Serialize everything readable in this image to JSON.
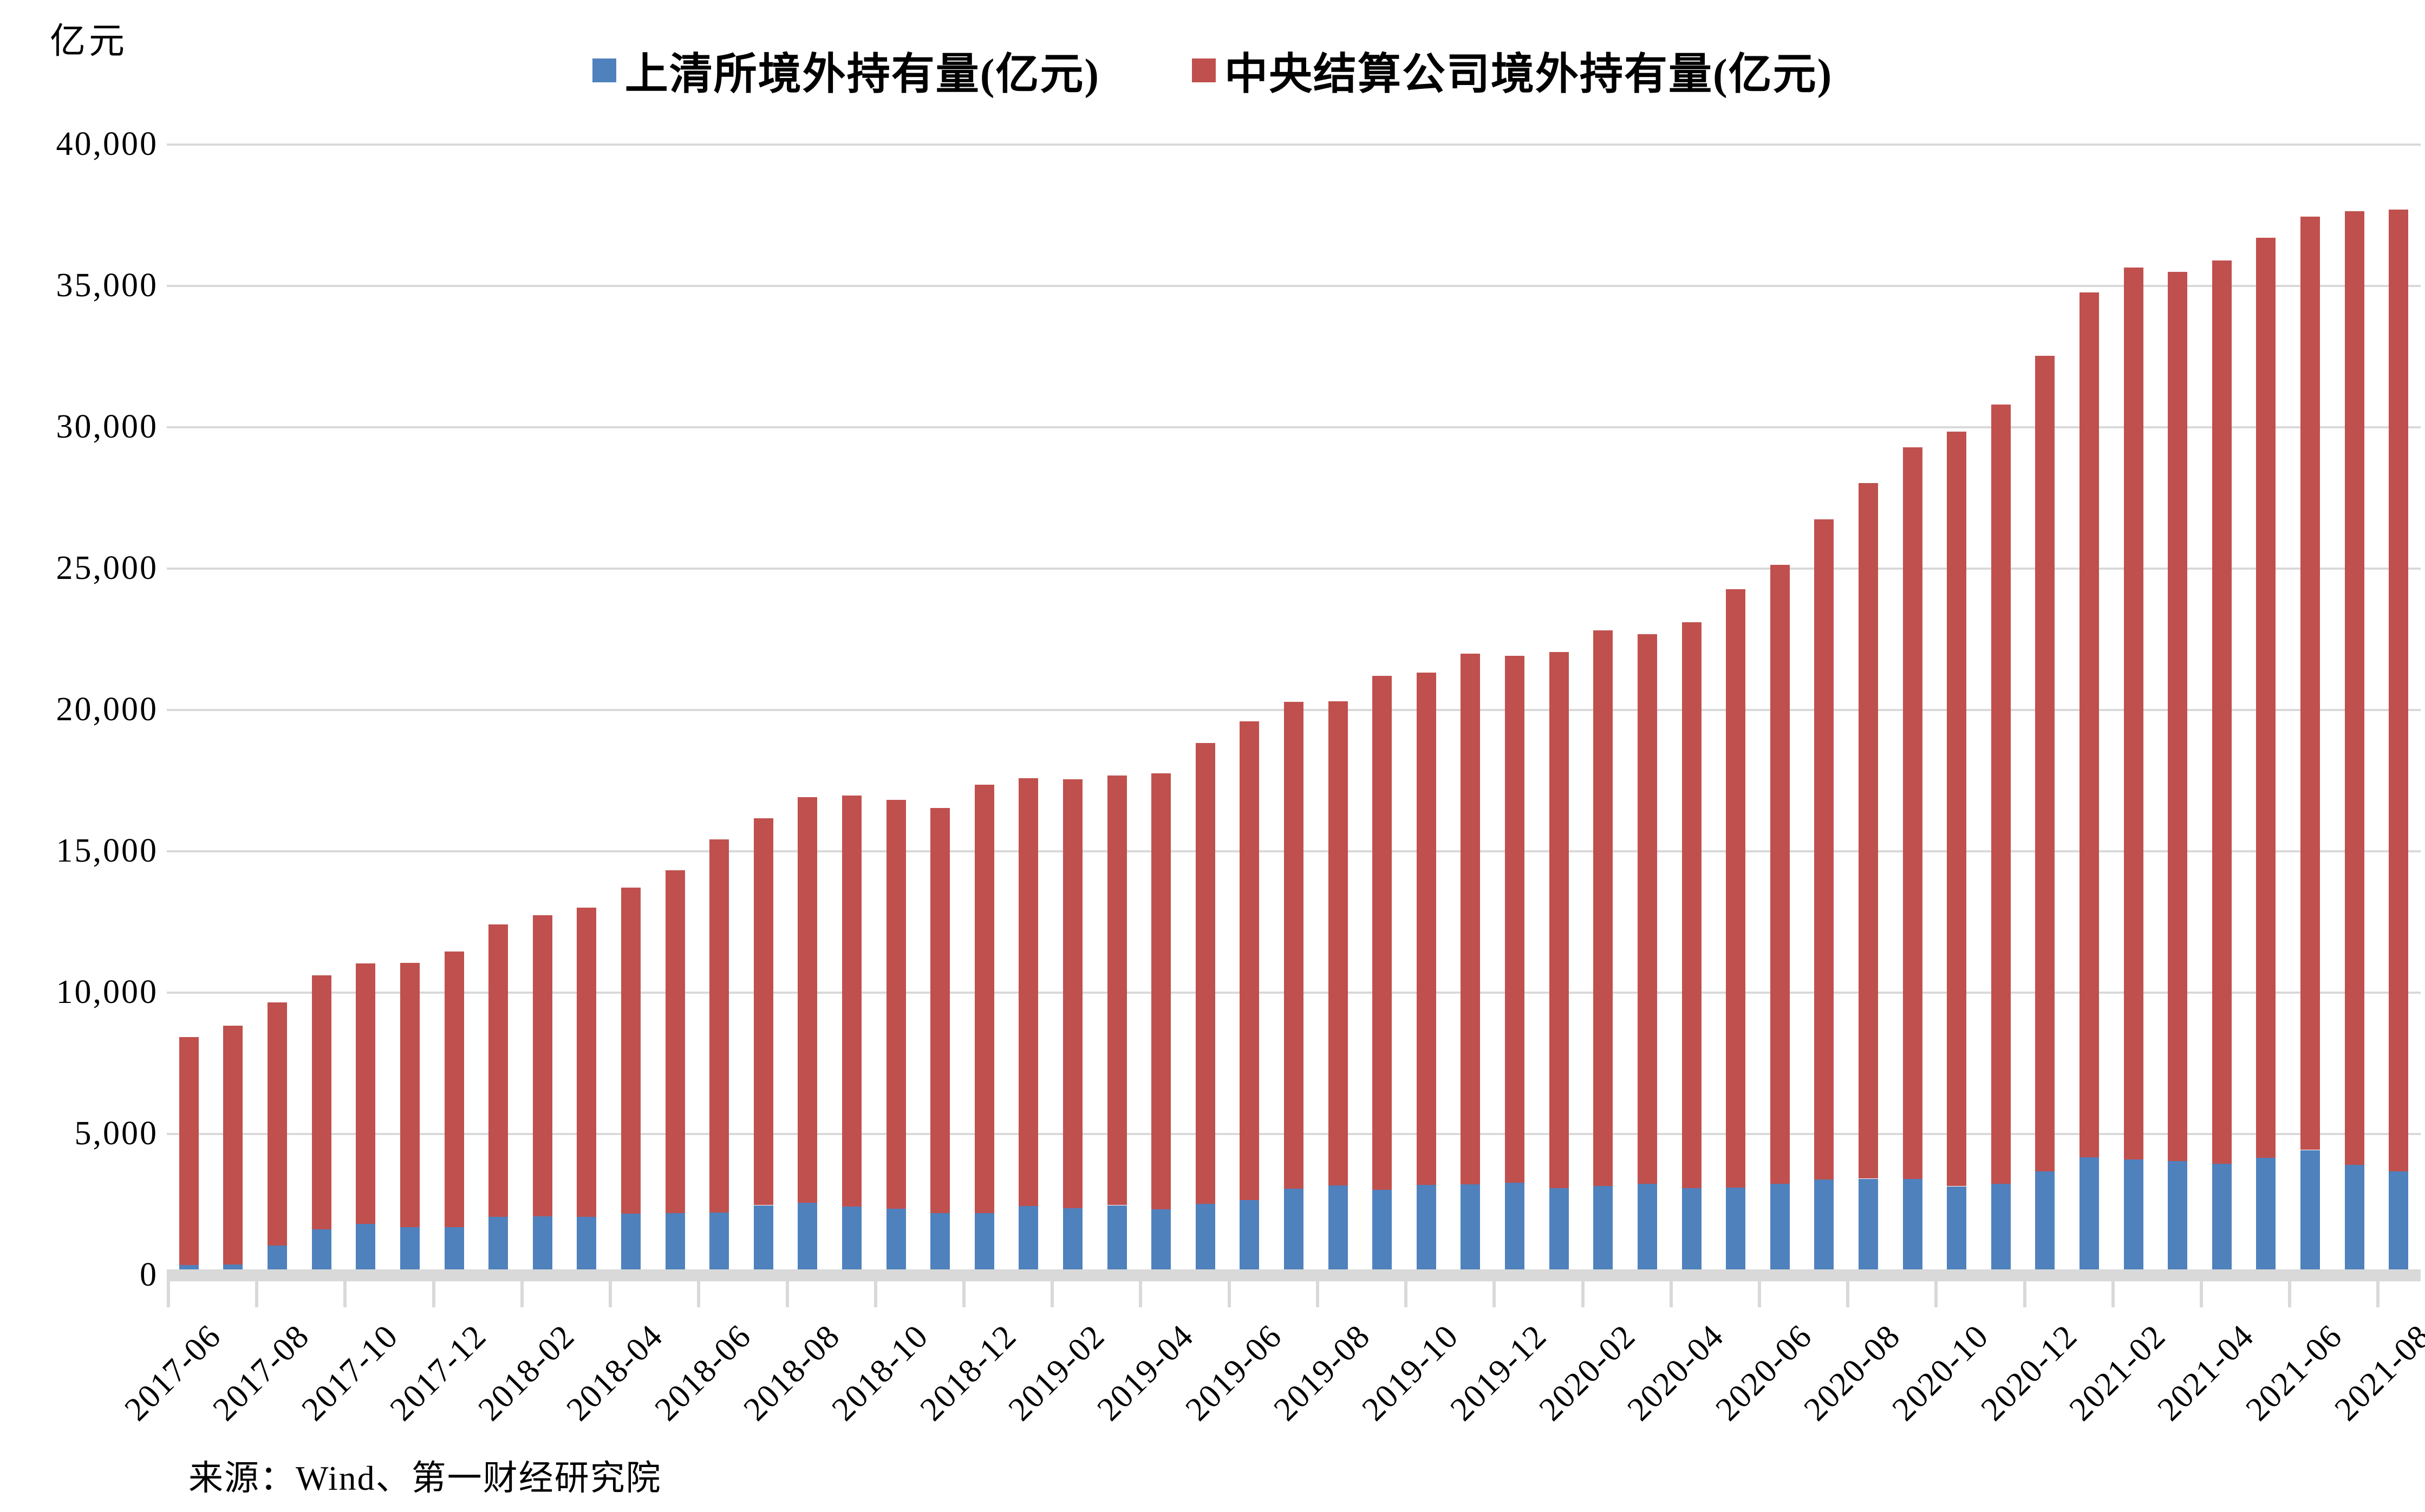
{
  "unit_label": "亿元",
  "source": "来源：Wind、第一财经研究院",
  "colors": {
    "shch_blue": "#4F81BD",
    "ccdc_red": "#C0504D",
    "grid_gray": "#D9D9D9"
  },
  "chart_data": {
    "type": "bar",
    "stacked": true,
    "title": "",
    "xlabel": "",
    "ylabel": "亿元",
    "ylim": [
      0,
      40000
    ],
    "yticks": [
      0,
      5000,
      10000,
      15000,
      20000,
      25000,
      30000,
      35000,
      40000
    ],
    "grid": true,
    "legend_position": "top",
    "x": [
      "2017-06",
      "2017-07",
      "2017-08",
      "2017-09",
      "2017-10",
      "2017-11",
      "2017-12",
      "2018-01",
      "2018-02",
      "2018-03",
      "2018-04",
      "2018-05",
      "2018-06",
      "2018-07",
      "2018-08",
      "2018-09",
      "2018-10",
      "2018-11",
      "2018-12",
      "2019-01",
      "2019-02",
      "2019-03",
      "2019-04",
      "2019-05",
      "2019-06",
      "2019-07",
      "2019-08",
      "2019-09",
      "2019-10",
      "2019-11",
      "2019-12",
      "2020-01",
      "2020-02",
      "2020-03",
      "2020-04",
      "2020-05",
      "2020-06",
      "2020-07",
      "2020-08",
      "2020-09",
      "2020-10",
      "2020-11",
      "2020-12",
      "2021-01",
      "2021-02",
      "2021-03",
      "2021-04",
      "2021-05",
      "2021-06",
      "2021-07",
      "2021-08"
    ],
    "x_tick_labels": [
      "2017-06",
      "2017-08",
      "2017-10",
      "2017-12",
      "2018-02",
      "2018-04",
      "2018-06",
      "2018-08",
      "2018-10",
      "2018-12",
      "2019-02",
      "2019-04",
      "2019-06",
      "2019-08",
      "2019-10",
      "2019-12",
      "2020-02",
      "2020-04",
      "2020-06",
      "2020-08",
      "2020-10",
      "2020-12",
      "2021-02",
      "2021-04",
      "2021-06",
      "2021-08"
    ],
    "series": [
      {
        "name": "上清所境外持有量(亿元)",
        "color": "#4F81BD",
        "values": [
          360,
          385,
          1055,
          1620,
          1820,
          1705,
          1710,
          2075,
          2095,
          2070,
          2180,
          2200,
          2225,
          2480,
          2560,
          2440,
          2350,
          2205,
          2205,
          2455,
          2370,
          2480,
          2330,
          2535,
          2665,
          3065,
          3175,
          3035,
          3200,
          3215,
          3280,
          3085,
          3160,
          3245,
          3080,
          3095,
          3230,
          3395,
          3420,
          3410,
          3150,
          3240,
          3680,
          4180,
          4105,
          4040,
          3955,
          4165,
          4435,
          3905,
          3680
        ]
      },
      {
        "name": "中央结算公司境外持有量(亿元)",
        "color": "#C0504D",
        "values": [
          8075,
          8455,
          8605,
          8990,
          9215,
          9355,
          9740,
          10335,
          10640,
          10930,
          11535,
          12130,
          13205,
          13690,
          14360,
          14540,
          14480,
          14325,
          15150,
          15125,
          15180,
          15205,
          15430,
          16305,
          16925,
          17215,
          17135,
          18165,
          18120,
          18785,
          18630,
          18960,
          19655,
          19430,
          20030,
          21175,
          21910,
          23340,
          24615,
          25890,
          26700,
          27560,
          28850,
          30590,
          31545,
          31460,
          31945,
          32535,
          33015,
          33745,
          34030
        ]
      }
    ]
  }
}
